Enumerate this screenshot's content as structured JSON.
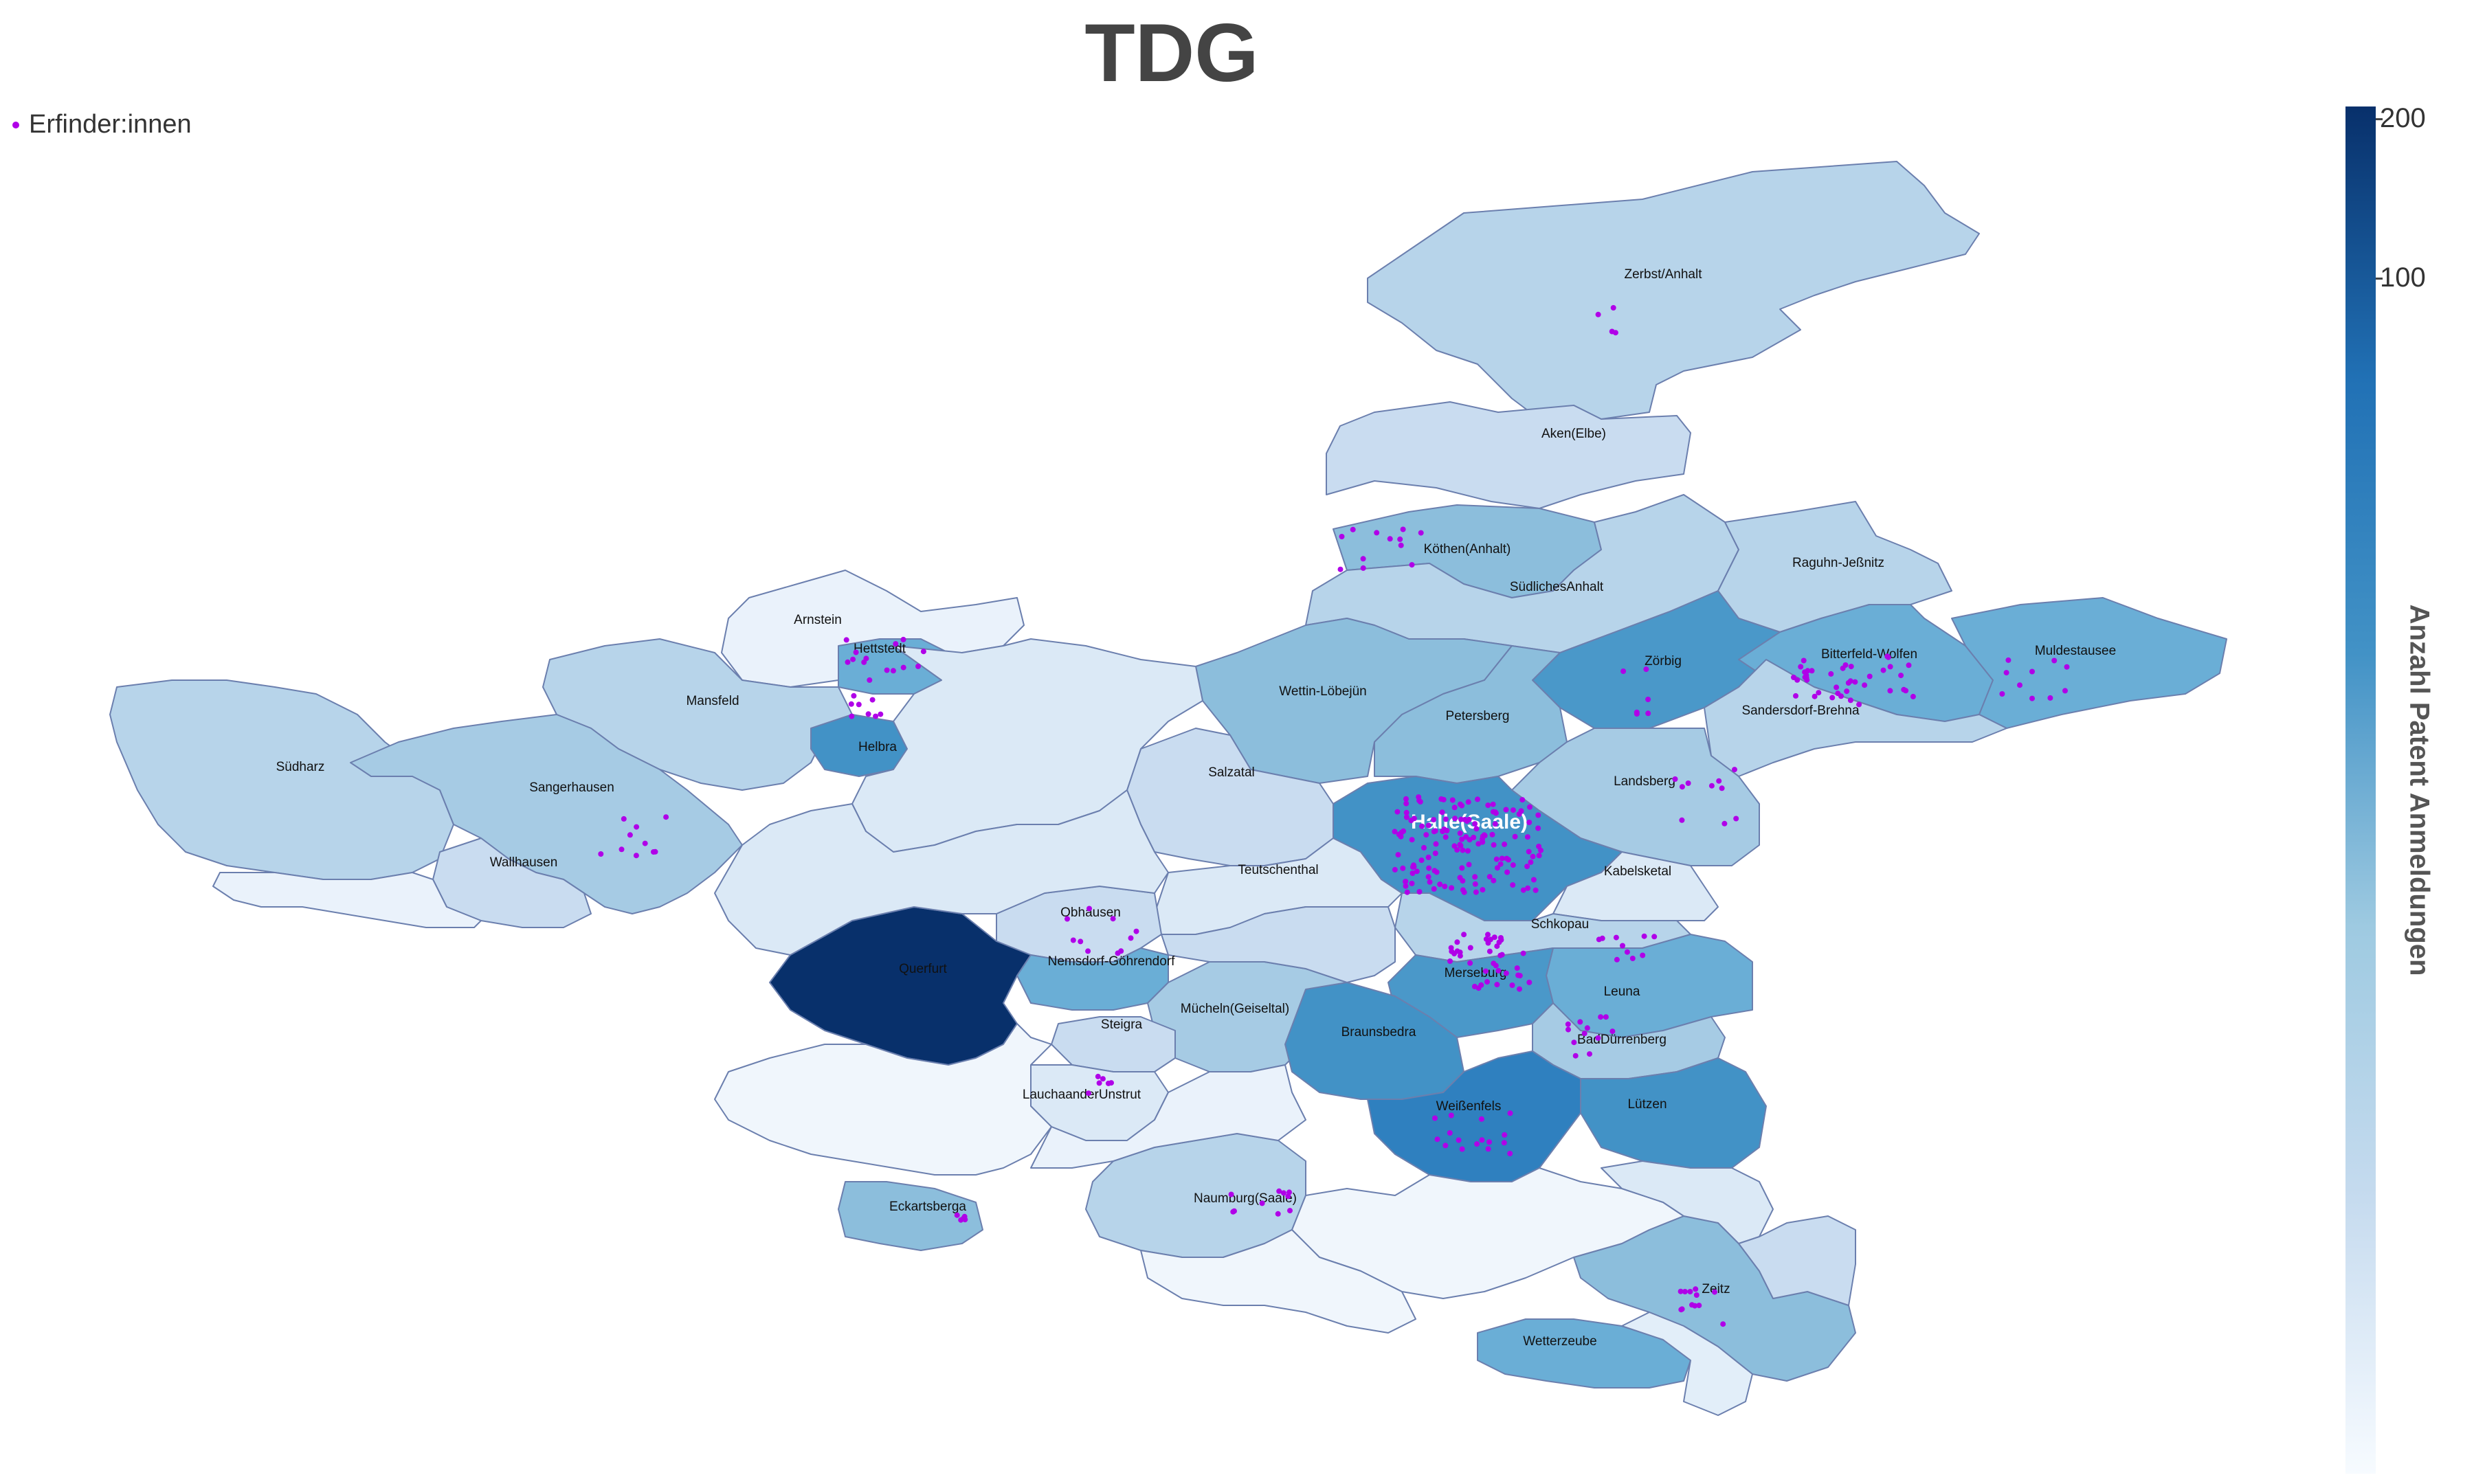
{
  "title": "TDG",
  "legend": {
    "label": "Erfinder:innen",
    "marker_color": "#b000e8"
  },
  "colorbar": {
    "title": "Anzahl Patent Anmeldungen",
    "tick_labels": [
      "200",
      "100"
    ],
    "gradient": [
      "#f7fbff",
      "#c6dbef",
      "#9ecae1",
      "#4292c6",
      "#2171b5",
      "#08306b"
    ]
  },
  "regions": [
    {
      "name": "Zerbst/Anhalt",
      "fill": "#b7d4ea"
    },
    {
      "name": "Aken(Elbe)",
      "fill": "#c9dcf0"
    },
    {
      "name": "Köthen(Anhalt)",
      "fill": "#8cbedc"
    },
    {
      "name": "SüdlichesAnhalt",
      "fill": "#b7d4ea"
    },
    {
      "name": "Raguhn-Jeßnitz",
      "fill": "#b7d4ea"
    },
    {
      "name": "Bitterfeld-Wolfen",
      "fill": "#4a98c9"
    },
    {
      "name": "Muldestausee",
      "fill": "#6aaed6"
    },
    {
      "name": "Sandersdorf-Brehna",
      "fill": "#6aaed6"
    },
    {
      "name": "Zörbig",
      "fill": "#b7d4ea"
    },
    {
      "name": "Arnstein",
      "fill": "#8cbedc"
    },
    {
      "name": "Hettstedt",
      "fill": "#8cbedc"
    },
    {
      "name": "Mansfeld",
      "fill": "#a6cbe4"
    },
    {
      "name": "Südharz",
      "fill": "#c9dcf0"
    },
    {
      "name": "Sangerhausen",
      "fill": "#4292c6"
    },
    {
      "name": "Helbra",
      "fill": "#dbe9f6"
    },
    {
      "name": "Wallhausen",
      "fill": "#dbe9f6"
    },
    {
      "name": "Wettin-Löbejün",
      "fill": "#c9dcf0"
    },
    {
      "name": "Petersberg",
      "fill": "#b7d4ea"
    },
    {
      "name": "Salzatal",
      "fill": "#6aaed6"
    },
    {
      "name": "Landsberg",
      "fill": "#4a98c9"
    },
    {
      "name": "Halle(Saale)",
      "fill": "#08306b"
    },
    {
      "name": "Kabelsketal",
      "fill": "#6aaed6"
    },
    {
      "name": "Teutschenthal",
      "fill": "#a6cbe4"
    },
    {
      "name": "Obhausen",
      "fill": "#c9dcf0"
    },
    {
      "name": "Schkopau",
      "fill": "#4292c6"
    },
    {
      "name": "Querfurt",
      "fill": "#a6cbe4"
    },
    {
      "name": "Nemsdorf-Göhrendorf",
      "fill": "#dbe9f6"
    },
    {
      "name": "Merseburg",
      "fill": "#2f80bf"
    },
    {
      "name": "Leuna",
      "fill": "#4292c6"
    },
    {
      "name": "Mücheln(Geiseltal)",
      "fill": "#b7d4ea"
    },
    {
      "name": "Steigra",
      "fill": "#8cbedc"
    },
    {
      "name": "Braunsbedra",
      "fill": "#8cbedc"
    },
    {
      "name": "BadDürrenberg",
      "fill": "#6aaed6"
    },
    {
      "name": "LauchaanderUnstrut",
      "fill": "#eaf2fb"
    },
    {
      "name": "Weißenfels",
      "fill": "#6aaed6"
    },
    {
      "name": "Lützen",
      "fill": "#b7d4ea"
    },
    {
      "name": "Eckartsberga",
      "fill": "#b7d4ea"
    },
    {
      "name": "Naumburg(Saale)",
      "fill": "#a6cbe4"
    },
    {
      "name": "Zeitz",
      "fill": "#4292c6"
    },
    {
      "name": "Wetterzeube",
      "fill": "#c9dcf0"
    }
  ]
}
